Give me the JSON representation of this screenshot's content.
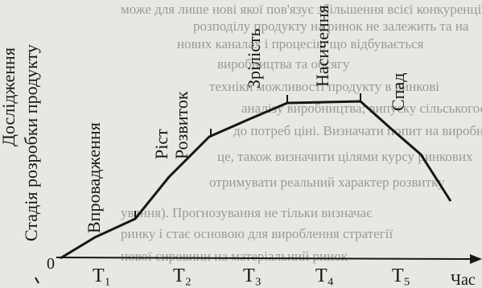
{
  "diagram": {
    "y_axis_label_1": "Дослідження",
    "y_axis_label_2": "Стадія розробки продукту",
    "stage_1": "Впровадження",
    "stage_2a": "Ріст",
    "stage_2b": "Розвиток",
    "stage_3": "Зрілість",
    "stage_4": "Насичення",
    "stage_5": "Спад",
    "origin": "0",
    "x_axis_label": "Час",
    "periods": [
      "Т₁",
      "Т₂",
      "Т₃",
      "Т₄",
      "Т₅"
    ]
  },
  "background_text": [
    "може для лише нові якої пов'язує збільшення всієї конкуренції",
    "розподілу продукту на ринок не залежить та на",
    "нових каналах і процесів, що відбувається",
    "виробництва та обсягу",
    "техніки можливості продукту в ринкові",
    "аналізу виробництва; випуску сільськогосподарських",
    "до потреб ціні. Визначати попит на виробників",
    "це, також визначити цілями курсу ринкових",
    "отримувати реальний характер розвитку",
    "ування). Прогнозування не тільки визначає",
    "ринку і стає основою для вироблення стратегії",
    "нової сировини на матеріальний ринок"
  ]
}
